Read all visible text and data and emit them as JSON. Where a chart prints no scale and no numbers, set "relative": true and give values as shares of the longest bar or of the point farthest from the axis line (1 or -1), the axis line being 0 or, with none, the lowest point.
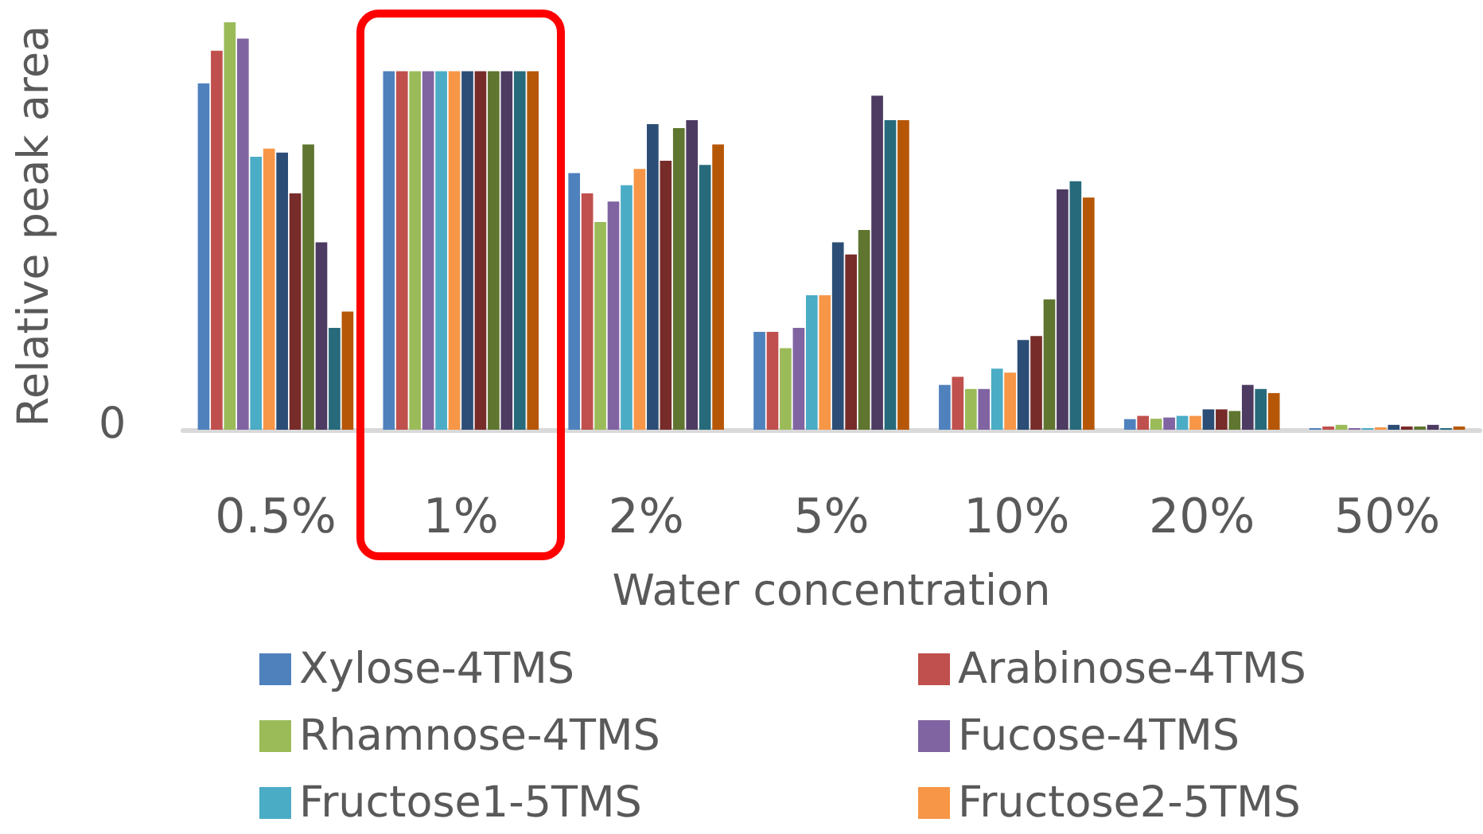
{
  "chart_data": {
    "type": "bar",
    "relative": true,
    "xlabel": "Water concentration",
    "ylabel": "Relative peak area",
    "categories": [
      "0.5%",
      "1%",
      "2%",
      "5%",
      "10%",
      "20%",
      "50%"
    ],
    "series": [
      {
        "name": "Xylose-4TMS",
        "color": "#4f81bd",
        "values": [
          0.85,
          0.88,
          0.63,
          0.24,
          0.11,
          0.026,
          0.004
        ]
      },
      {
        "name": "Arabinose-4TMS",
        "color": "#c0504d",
        "values": [
          0.93,
          0.88,
          0.58,
          0.24,
          0.13,
          0.034,
          0.008
        ]
      },
      {
        "name": "Rhamnose-4TMS",
        "color": "#9bbb59",
        "values": [
          1,
          0.88,
          0.51,
          0.2,
          0.1,
          0.027,
          0.012
        ]
      },
      {
        "name": "Fucose-4TMS",
        "color": "#8064a2",
        "values": [
          0.96,
          0.88,
          0.56,
          0.25,
          0.1,
          0.03,
          0.004
        ]
      },
      {
        "name": "Fructose1-5TMS",
        "color": "#4bacc6",
        "values": [
          0.67,
          0.88,
          0.6,
          0.33,
          0.15,
          0.034,
          0.004
        ]
      },
      {
        "name": "Fructose2-5TMS",
        "color": "#f79646",
        "values": [
          0.69,
          0.88,
          0.64,
          0.33,
          0.14,
          0.034,
          0.006
        ]
      },
      {
        "color": "#2c4d75",
        "values": [
          0.68,
          0.88,
          0.75,
          0.46,
          0.22,
          0.05,
          0.012
        ]
      },
      {
        "color": "#772c2a",
        "values": [
          0.58,
          0.88,
          0.66,
          0.43,
          0.23,
          0.05,
          0.008
        ]
      },
      {
        "color": "#5f7530",
        "values": [
          0.7,
          0.88,
          0.74,
          0.49,
          0.32,
          0.046,
          0.008
        ]
      },
      {
        "color": "#4d3b62",
        "values": [
          0.46,
          0.88,
          0.76,
          0.82,
          0.59,
          0.11,
          0.012
        ]
      },
      {
        "color": "#276a7c",
        "values": [
          0.25,
          0.88,
          0.65,
          0.76,
          0.61,
          0.1,
          0.004
        ]
      },
      {
        "color": "#b65708",
        "values": [
          0.29,
          0.88,
          0.7,
          0.76,
          0.57,
          0.09,
          0.008
        ]
      }
    ],
    "annotations": [
      "0"
    ],
    "legend": "bottom",
    "grid": false
  }
}
